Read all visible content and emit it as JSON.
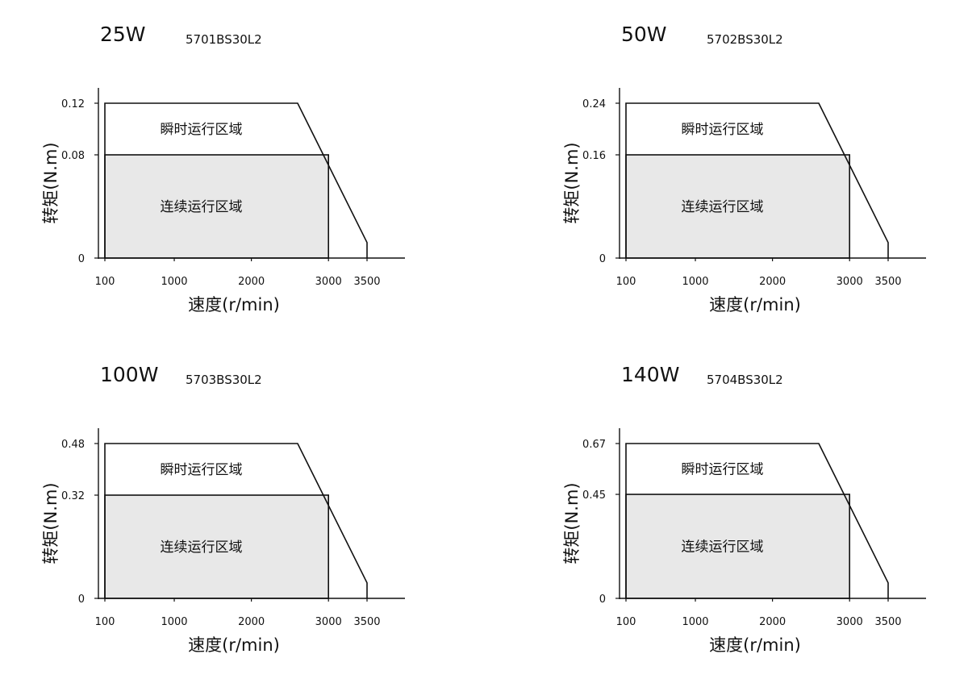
{
  "chart_data": [
    {
      "type": "area",
      "power": "25W",
      "model": "5701BS30L2",
      "xlabel": "速度(r/min)",
      "ylabel": "转矩(N.m)",
      "x_ticks": [
        "100",
        "1000",
        "2000",
        "3000",
        "3500"
      ],
      "y_ticks": [
        "0",
        "0.08",
        "0.12"
      ],
      "xlim": [
        100,
        3500
      ],
      "ylim": [
        0,
        0.12
      ],
      "instant_label": "瞬时运行区域",
      "continuous_label": "连续运行区域",
      "instant_boundary": [
        [
          100,
          0.12
        ],
        [
          2600,
          0.12
        ],
        [
          3500,
          0.012
        ],
        [
          3500,
          0
        ]
      ],
      "continuous_boundary": [
        [
          100,
          0.08
        ],
        [
          3000,
          0.08
        ],
        [
          3000,
          0
        ]
      ]
    },
    {
      "type": "area",
      "power": "50W",
      "model": "5702BS30L2",
      "xlabel": "速度(r/min)",
      "ylabel": "转矩(N.m)",
      "x_ticks": [
        "100",
        "1000",
        "2000",
        "3000",
        "3500"
      ],
      "y_ticks": [
        "0",
        "0.16",
        "0.24"
      ],
      "xlim": [
        100,
        3500
      ],
      "ylim": [
        0,
        0.24
      ],
      "instant_label": "瞬时运行区域",
      "continuous_label": "连续运行区域",
      "instant_boundary": [
        [
          100,
          0.24
        ],
        [
          2600,
          0.24
        ],
        [
          3500,
          0.024
        ],
        [
          3500,
          0
        ]
      ],
      "continuous_boundary": [
        [
          100,
          0.16
        ],
        [
          3000,
          0.16
        ],
        [
          3000,
          0
        ]
      ]
    },
    {
      "type": "area",
      "power": "100W",
      "model": "5703BS30L2",
      "xlabel": "速度(r/min)",
      "ylabel": "转矩(N.m)",
      "x_ticks": [
        "100",
        "1000",
        "2000",
        "3000",
        "3500"
      ],
      "y_ticks": [
        "0",
        "0.32",
        "0.48"
      ],
      "xlim": [
        100,
        3500
      ],
      "ylim": [
        0,
        0.48
      ],
      "instant_label": "瞬时运行区域",
      "continuous_label": "连续运行区域",
      "instant_boundary": [
        [
          100,
          0.48
        ],
        [
          2600,
          0.48
        ],
        [
          3500,
          0.048
        ],
        [
          3500,
          0
        ]
      ],
      "continuous_boundary": [
        [
          100,
          0.32
        ],
        [
          3000,
          0.32
        ],
        [
          3000,
          0
        ]
      ]
    },
    {
      "type": "area",
      "power": "140W",
      "model": "5704BS30L2",
      "xlabel": "速度(r/min)",
      "ylabel": "转矩(N.m)",
      "x_ticks": [
        "100",
        "1000",
        "2000",
        "3000",
        "3500"
      ],
      "y_ticks": [
        "0",
        "0.45",
        "0.67"
      ],
      "xlim": [
        100,
        3500
      ],
      "ylim": [
        0,
        0.67
      ],
      "instant_label": "瞬时运行区域",
      "continuous_label": "连续运行区域",
      "instant_boundary": [
        [
          100,
          0.67
        ],
        [
          2600,
          0.67
        ],
        [
          3500,
          0.067
        ],
        [
          3500,
          0
        ]
      ],
      "continuous_boundary": [
        [
          100,
          0.45
        ],
        [
          3000,
          0.45
        ],
        [
          3000,
          0
        ]
      ]
    }
  ],
  "colors": {
    "line": "#111111",
    "continuous_fill": "#e8e8e8"
  }
}
